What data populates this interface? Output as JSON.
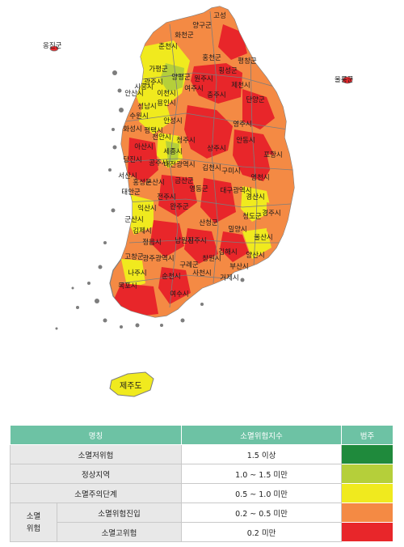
{
  "colors": {
    "extinction_low": "#1f8a3c",
    "normal": "#b5cf3a",
    "caution": "#f0ea1e",
    "entering": "#f48a44",
    "high": "#e8262a",
    "border": "#8a8a8a",
    "header_bg": "#6dc2a4"
  },
  "map": {
    "islands": {
      "west": "옹진군",
      "east": "울릉군",
      "jeju": "제주도"
    },
    "regions": [
      "고성",
      "양구군",
      "화천군",
      "춘천시",
      "홍천군",
      "가평군",
      "양평군",
      "여주시",
      "이천시",
      "광주시",
      "성남시",
      "용인시",
      "수원시",
      "화성시",
      "평택시",
      "안성시",
      "안산시",
      "시흥시",
      "충주시",
      "제천시",
      "단양군",
      "원주시",
      "횡성군",
      "평창군",
      "천안시",
      "아산시",
      "당진시",
      "서산시",
      "태안군",
      "홍성군",
      "청주시",
      "세종시",
      "공주시",
      "논산시",
      "대전광역시",
      "금산군",
      "영동군",
      "전주시",
      "완주군",
      "익산시",
      "군산시",
      "김제시",
      "정읍시",
      "고창군",
      "광주광역시",
      "나주시",
      "목포시",
      "순천시",
      "여수시",
      "구례군",
      "남원시",
      "안동시",
      "영주시",
      "상주시",
      "구미시",
      "김천시",
      "대구광역시",
      "경산시",
      "영천시",
      "경주시",
      "포항시",
      "울산시",
      "양산시",
      "부산시",
      "김해시",
      "창원시",
      "진주시",
      "사천시",
      "거제시",
      "산청군",
      "밀양시",
      "청도군"
    ]
  },
  "legend": {
    "header": {
      "name": "명칭",
      "index": "소멸위험지수",
      "range": "범주"
    },
    "rows": [
      {
        "label": "소멸저위험",
        "value": "1.5 이상",
        "color": "#1f8a3c"
      },
      {
        "label": "정상지역",
        "value": "1.0 ~ 1.5 미만",
        "color": "#b5cf3a"
      },
      {
        "label": "소멸주의단계",
        "value": "0.5 ~ 1.0 미만",
        "color": "#f0ea1e"
      },
      {
        "label": "소멸위험진입",
        "value": "0.2 ~ 0.5 미만",
        "color": "#f48a44"
      },
      {
        "label": "소멸고위험",
        "value": "0.2 미만",
        "color": "#e8262a"
      }
    ],
    "group_label": "소멸\n위험"
  }
}
